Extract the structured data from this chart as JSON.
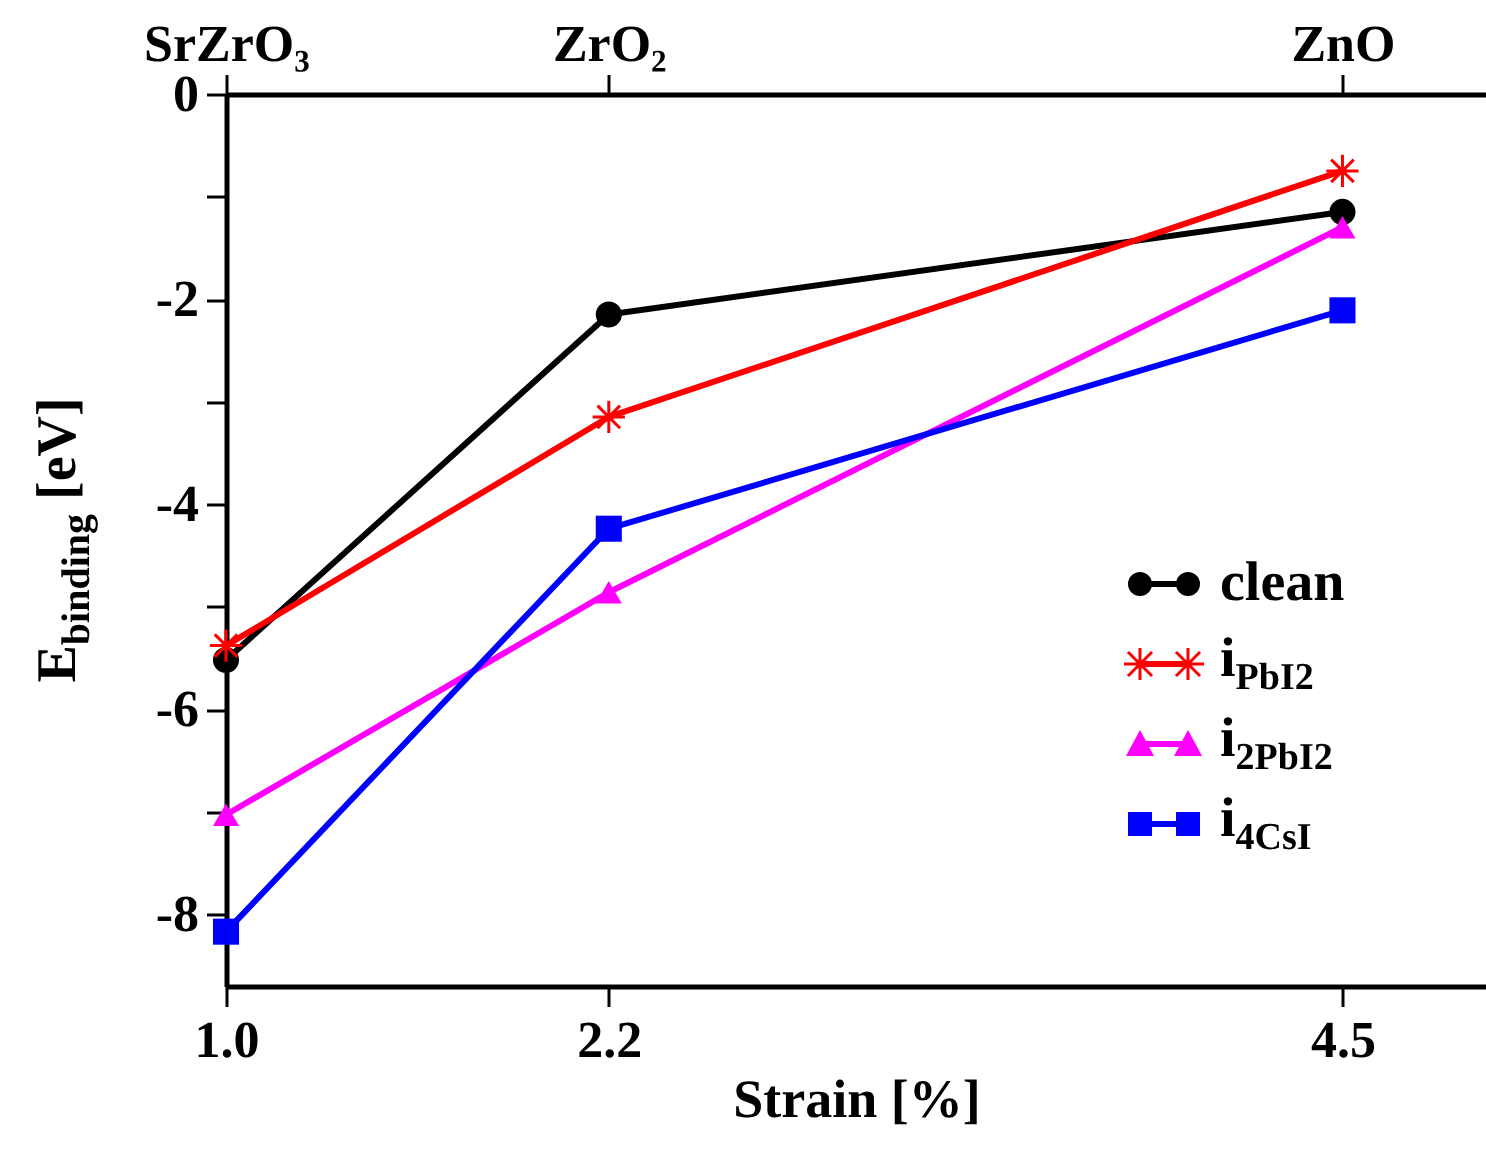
{
  "chart_data": {
    "type": "line",
    "xlabel": "Strain [%]",
    "ylabel": "E$_{binding}$ [eV]",
    "x": [
      1.0,
      2.2,
      4.5
    ],
    "xlim": [
      1.0,
      4.95
    ],
    "xticks": [
      {
        "value": 1.0,
        "label": "1.0"
      },
      {
        "value": 2.2,
        "label": "2.2"
      },
      {
        "value": 4.5,
        "label": "4.5"
      }
    ],
    "annotations": [
      "SrZrO₃",
      "ZrO₂",
      "ZnO"
    ],
    "ylim": [
      -8.7,
      0
    ],
    "yticks": [
      -8,
      {
        "value": -7,
        "label": null
      },
      -6,
      {
        "value": -5,
        "label": null
      },
      -4,
      {
        "value": -3,
        "label": null
      },
      -2,
      {
        "value": -1,
        "label": null
      },
      0
    ],
    "series": [
      {
        "name": "clean",
        "color": "#000000",
        "marker": "circle",
        "values": [
          -5.52,
          -2.15,
          -1.15
        ]
      },
      {
        "name": "i$_{PbI2}$",
        "color": "#ff0000",
        "marker": "cross",
        "values": [
          -5.38,
          -3.15,
          -0.75
        ]
      },
      {
        "name": "i$_{2PbI2}$",
        "color": "#ff00ff",
        "marker": "triangle",
        "values": [
          -7.03,
          -4.86,
          -1.3
        ]
      },
      {
        "name": "i$_{4CsI}$",
        "color": "#0000ff",
        "marker": "square",
        "values": [
          -8.17,
          -4.24,
          -2.11
        ]
      }
    ],
    "legend": "bottom right",
    "grid": false,
    "line_style": "solid"
  }
}
